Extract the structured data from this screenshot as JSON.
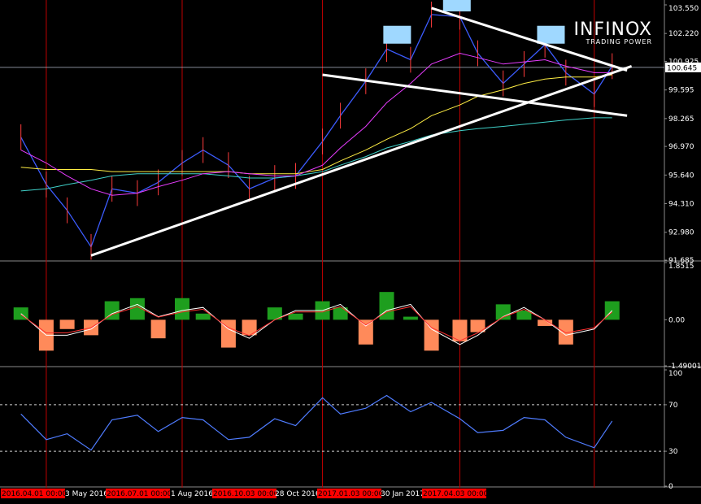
{
  "brand": {
    "name": "INFINOX",
    "tagline": "TRADING POWER"
  },
  "chart_data": [
    {
      "type": "line",
      "panel": "price",
      "y_ticks": [
        "103.550",
        "102.220",
        "100.925",
        "99.595",
        "98.265",
        "96.970",
        "95.640",
        "94.310",
        "92.980",
        "91.685"
      ],
      "y_tick_values": [
        103.55,
        102.22,
        100.925,
        99.595,
        98.265,
        96.97,
        95.64,
        94.31,
        92.98,
        91.685
      ],
      "current_price_label": "100.645",
      "current_price": 100.645,
      "ylim": [
        91.685,
        103.55
      ],
      "x": [
        "2016-03-15",
        "2016-04-01",
        "2016-04-15",
        "2016-05-01",
        "2016-05-15",
        "2016-06-01",
        "2016-06-15",
        "2016-07-01",
        "2016-07-15",
        "2016-08-01",
        "2016-08-15",
        "2016-09-01",
        "2016-09-15",
        "2016-10-03",
        "2016-10-15",
        "2016-11-01",
        "2016-11-15",
        "2016-12-01",
        "2016-12-15",
        "2017-01-03",
        "2017-01-15",
        "2017-02-01",
        "2017-02-15",
        "2017-03-01",
        "2017-03-15",
        "2017-04-03",
        "2017-04-15"
      ],
      "series": [
        {
          "role": "price",
          "color": "#3c5cff",
          "values": [
            97.4,
            95.2,
            94.0,
            92.3,
            95.0,
            94.8,
            95.3,
            96.2,
            96.8,
            96.1,
            95.0,
            95.5,
            95.6,
            97.2,
            98.4,
            100.0,
            101.5,
            101.0,
            103.1,
            103.0,
            101.3,
            99.9,
            100.8,
            101.7,
            100.4,
            99.4,
            100.7
          ]
        },
        {
          "role": "ma-long",
          "color": "#3fd0c8",
          "values": [
            94.9,
            95.0,
            95.2,
            95.4,
            95.6,
            95.7,
            95.7,
            95.7,
            95.7,
            95.6,
            95.5,
            95.5,
            95.6,
            95.8,
            96.1,
            96.5,
            96.9,
            97.2,
            97.5,
            97.7,
            97.8,
            97.9,
            98.0,
            98.1,
            98.2,
            98.3,
            98.3
          ]
        },
        {
          "role": "ma-mid",
          "color": "#ffee44",
          "values": [
            96.0,
            95.9,
            95.9,
            95.9,
            95.8,
            95.8,
            95.8,
            95.8,
            95.8,
            95.8,
            95.7,
            95.7,
            95.7,
            95.9,
            96.3,
            96.8,
            97.3,
            97.8,
            98.4,
            98.9,
            99.3,
            99.6,
            99.9,
            100.1,
            100.2,
            100.2,
            100.3
          ]
        },
        {
          "role": "ma-short",
          "color": "#e83cff",
          "values": [
            96.8,
            96.2,
            95.6,
            95.0,
            94.7,
            94.8,
            95.1,
            95.4,
            95.7,
            95.8,
            95.7,
            95.6,
            95.6,
            96.1,
            96.9,
            97.9,
            99.0,
            99.9,
            100.8,
            101.3,
            101.1,
            100.8,
            100.9,
            101.0,
            100.7,
            100.4,
            100.4
          ]
        }
      ],
      "trendlines": [
        {
          "from": [
            "2016-05-01",
            91.9
          ],
          "to": [
            "2017-04-28",
            100.7
          ]
        },
        {
          "from": [
            "2016-10-03",
            100.3
          ],
          "to": [
            "2017-04-25",
            98.4
          ]
        },
        {
          "from": [
            "2016-12-15",
            103.4
          ],
          "to": [
            "2017-04-25",
            100.5
          ]
        }
      ],
      "highlights": [
        {
          "at": "2016-11-22",
          "value": 102.2
        },
        {
          "at": "2017-01-01",
          "value": 103.7
        },
        {
          "at": "2017-03-05",
          "value": 102.2
        }
      ]
    },
    {
      "type": "bar",
      "panel": "macd",
      "y_ticks": [
        "1.8515",
        "0.00",
        "-1.49001"
      ],
      "y_tick_values": [
        1.8515,
        0.0,
        -1.49001
      ],
      "ylim": [
        -1.49001,
        1.8515
      ],
      "x": [
        "2016-03-15",
        "2016-04-01",
        "2016-04-15",
        "2016-05-01",
        "2016-05-15",
        "2016-06-01",
        "2016-06-15",
        "2016-07-01",
        "2016-07-15",
        "2016-08-01",
        "2016-08-15",
        "2016-09-01",
        "2016-09-15",
        "2016-10-03",
        "2016-10-15",
        "2016-11-01",
        "2016-11-15",
        "2016-12-01",
        "2016-12-15",
        "2017-01-03",
        "2017-01-15",
        "2017-02-01",
        "2017-02-15",
        "2017-03-01",
        "2017-03-15",
        "2017-04-03",
        "2017-04-15"
      ],
      "values": [
        0.4,
        -1.0,
        -0.3,
        -0.5,
        0.6,
        0.7,
        -0.6,
        0.7,
        0.2,
        -0.9,
        -0.5,
        0.4,
        0.2,
        0.6,
        0.4,
        -0.8,
        0.9,
        0.1,
        -1.0,
        -0.7,
        -0.4,
        0.5,
        0.3,
        -0.2,
        -0.8,
        0.0,
        0.6
      ],
      "positive_color": "#1e9e1e",
      "negative_color": "#ff8a5a",
      "signal_values": [
        0.2,
        -0.5,
        -0.5,
        -0.3,
        0.2,
        0.5,
        0.1,
        0.3,
        0.4,
        -0.3,
        -0.6,
        0.0,
        0.3,
        0.3,
        0.5,
        -0.2,
        0.3,
        0.5,
        -0.3,
        -0.8,
        -0.5,
        0.1,
        0.4,
        0.0,
        -0.5,
        -0.3,
        0.3
      ]
    },
    {
      "type": "line",
      "panel": "rsi",
      "y_ticks": [
        "100",
        "70",
        "30",
        "0"
      ],
      "y_tick_values": [
        100,
        70,
        30,
        0
      ],
      "ylim": [
        0,
        100
      ],
      "x": [
        "2016-03-15",
        "2016-04-01",
        "2016-04-15",
        "2016-05-01",
        "2016-05-15",
        "2016-06-01",
        "2016-06-15",
        "2016-07-01",
        "2016-07-15",
        "2016-08-01",
        "2016-08-15",
        "2016-09-01",
        "2016-09-15",
        "2016-10-03",
        "2016-10-15",
        "2016-11-01",
        "2016-11-15",
        "2016-12-01",
        "2016-12-15",
        "2017-01-03",
        "2017-01-15",
        "2017-02-01",
        "2017-02-15",
        "2017-03-01",
        "2017-03-15",
        "2017-04-03",
        "2017-04-15"
      ],
      "values": [
        62,
        40,
        45,
        31,
        57,
        61,
        47,
        59,
        57,
        40,
        42,
        58,
        52,
        76,
        62,
        67,
        78,
        64,
        72,
        58,
        46,
        48,
        59,
        57,
        42,
        33,
        56
      ],
      "color": "#4f7cff"
    }
  ],
  "x_axis": {
    "labels": [
      {
        "text": "2016.04.01 00:00",
        "highlight": true
      },
      {
        "text": "3 May 2016",
        "highlight": false
      },
      {
        "text": "2016.07.01 00:00",
        "highlight": true
      },
      {
        "text": "1 Aug 2016",
        "highlight": false
      },
      {
        "text": "2016.10.03 00:00",
        "highlight": true
      },
      {
        "text": "28 Oct 2016",
        "highlight": false
      },
      {
        "text": "2017.01.03 00:00",
        "highlight": true
      },
      {
        "text": "30 Jan 2017",
        "highlight": false
      },
      {
        "text": "2017.04.03 00:00",
        "highlight": true
      }
    ],
    "highlight_color": "#ff0000"
  },
  "colors": {
    "background": "#000000",
    "grid_line": "#c00000",
    "trendline": "#ffffff",
    "highlight_box": "#9fd8ff"
  }
}
